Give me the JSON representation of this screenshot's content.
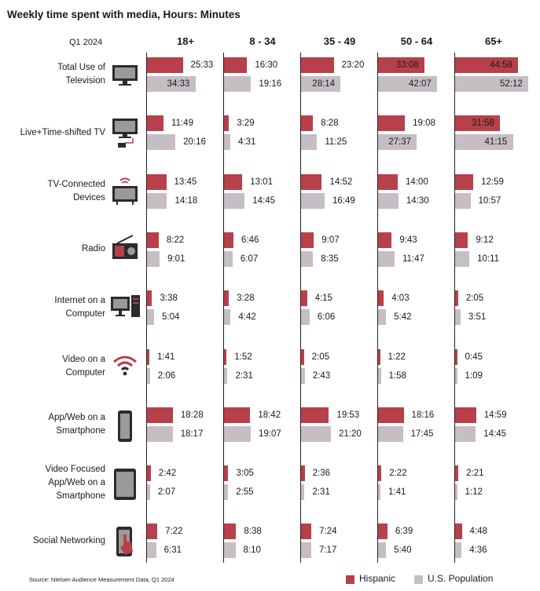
{
  "title": "Weekly time spent with media, Hours: Minutes",
  "quarter": "Q1 2024",
  "source": "Source: Nielsen Audience Measurement Data, Q1 2024",
  "colors": {
    "hispanic": "#b8404a",
    "us": "#c6bec4"
  },
  "icons": [
    "tv-icon",
    "tv-settop-icon",
    "tv-wifi-icon",
    "radio-icon",
    "desktop-computer-icon",
    "wifi-icon",
    "smartphone-icon",
    "tablet-icon",
    "touch-phone-icon"
  ],
  "chart_data": {
    "type": "bar",
    "title": "Weekly time spent with media, Hours: Minutes",
    "value_unit": "hours:minutes",
    "age_groups": [
      "18+",
      "8 - 34",
      "35 - 49",
      "50 - 64",
      "65+"
    ],
    "series": [
      {
        "name": "Hispanic",
        "color": "#b8404a"
      },
      {
        "name": "U.S. Population",
        "color": "#c6bec4"
      }
    ],
    "categories": [
      "Total Use of Television",
      "Live+Time-shifted TV",
      "TV-Connected Devices",
      "Radio",
      "Internet on a Computer",
      "Video on a Computer",
      "App/Web on a Smartphone",
      "Video Focused App/Web on a Smartphone",
      "Social Networking"
    ],
    "rows": [
      {
        "label_lines": [
          "Total Use of",
          "Television"
        ],
        "hispanic": [
          "25:33",
          "16:30",
          "23:20",
          "33:08",
          "44:58"
        ],
        "us": [
          "34:33",
          "19:16",
          "28:14",
          "42:07",
          "52:12"
        ]
      },
      {
        "label_lines": [
          "Live+Time-shifted TV"
        ],
        "hispanic": [
          "11:49",
          "3:29",
          "8:28",
          "19:08",
          "31:58"
        ],
        "us": [
          "20:16",
          "4:31",
          "11:25",
          "27:37",
          "41:15"
        ]
      },
      {
        "label_lines": [
          "TV-Connected",
          "Devices"
        ],
        "hispanic": [
          "13:45",
          "13:01",
          "14:52",
          "14:00",
          "12:59"
        ],
        "us": [
          "14:18",
          "14:45",
          "16:49",
          "14:30",
          "10:57"
        ]
      },
      {
        "label_lines": [
          "Radio"
        ],
        "hispanic": [
          "8:22",
          "6:46",
          "9:07",
          "9:43",
          "9:12"
        ],
        "us": [
          "9:01",
          "6:07",
          "8:35",
          "11:47",
          "10:11"
        ]
      },
      {
        "label_lines": [
          "Internet on a",
          "Computer"
        ],
        "hispanic": [
          "3:38",
          "3:28",
          "4:15",
          "4:03",
          "2:05"
        ],
        "us": [
          "5:04",
          "4:42",
          "6:06",
          "5:42",
          "3:51"
        ]
      },
      {
        "label_lines": [
          "Video on a",
          "Computer"
        ],
        "hispanic": [
          "1:41",
          "1:52",
          "2:05",
          "1:22",
          "0:45"
        ],
        "us": [
          "2:06",
          "2:31",
          "2:43",
          "1:58",
          "1:09"
        ]
      },
      {
        "label_lines": [
          "App/Web on a",
          "Smartphone"
        ],
        "hispanic": [
          "18:28",
          "18:42",
          "19:53",
          "18:16",
          "14:59"
        ],
        "us": [
          "18:17",
          "19:07",
          "21:20",
          "17:45",
          "14:45"
        ]
      },
      {
        "label_lines": [
          "Video Focused",
          "App/Web on a",
          "Smartphone"
        ],
        "hispanic": [
          "2:42",
          "3:05",
          "2:36",
          "2:22",
          "2:21"
        ],
        "us": [
          "2:07",
          "2:55",
          "2:31",
          "1:41",
          "1:12"
        ]
      },
      {
        "label_lines": [
          "Social Networking"
        ],
        "hispanic": [
          "7:22",
          "8:38",
          "7:24",
          "6:39",
          "4:48"
        ],
        "us": [
          "6:31",
          "8:10",
          "7:17",
          "5:40",
          "4:36"
        ]
      }
    ],
    "legend_position": "bottom-right"
  }
}
